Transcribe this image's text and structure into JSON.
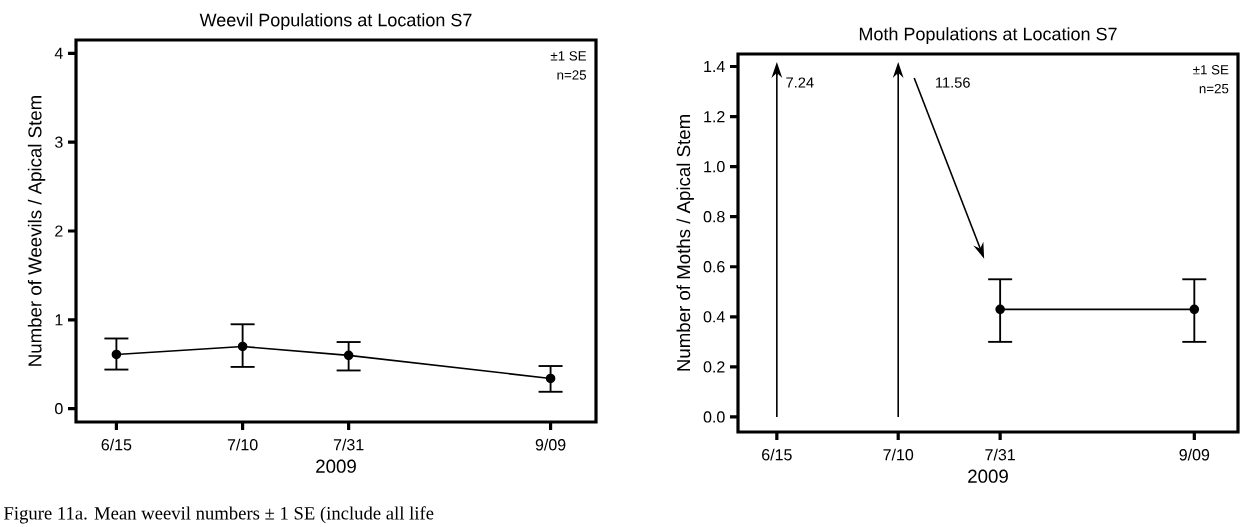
{
  "chart_data": [
    {
      "type": "line",
      "title": "Weevil Populations at Location S7",
      "xlabel": "2009",
      "ylabel": "Number of Weevils / Apical Stem",
      "x": [
        "2009-06-15",
        "2009-07-10",
        "2009-07-31",
        "2009-09-09"
      ],
      "series": [
        {
          "color": "#000000",
          "values": [
            0.61,
            0.7,
            0.6,
            0.34
          ],
          "errors": [
            [
              0.44,
              0.79
            ],
            [
              0.47,
              0.95
            ],
            [
              0.43,
              0.75
            ],
            [
              0.19,
              0.48
            ]
          ]
        }
      ],
      "xlim": [
        "2009-06-07",
        "2009-09-18"
      ],
      "xticks": [
        {
          "value": "2009-06-15",
          "label": "6/15"
        },
        {
          "value": "2009-07-10",
          "label": "7/10"
        },
        {
          "value": "2009-07-31",
          "label": "7/31"
        },
        {
          "value": "2009-09-09",
          "label": "9/09"
        }
      ],
      "ylim": [
        -0.15,
        4.15
      ],
      "yticks": [
        0,
        1,
        2,
        3,
        4
      ],
      "marker": "circle",
      "line_style": "solid",
      "annotations": [
        "±1 SE",
        "n=25",
        "Figure 11a. Mean weevil numbers ± 1 SE (include all life"
      ]
    },
    {
      "type": "line",
      "title": "Moth Populations at Location S7",
      "xlabel": "2009",
      "ylabel": "Number of Moths / Apical Stem",
      "series": [
        {
          "color": "#000000",
          "x": [
            "2009-07-31",
            "2009-09-09"
          ],
          "values": [
            0.43,
            0.43
          ],
          "errors": [
            [
              0.3,
              0.55
            ],
            [
              0.3,
              0.55
            ]
          ]
        }
      ],
      "xlim": [
        "2009-06-07",
        "2009-09-18"
      ],
      "xticks": [
        {
          "value": "2009-06-15",
          "label": "6/15"
        },
        {
          "value": "2009-07-10",
          "label": "7/10"
        },
        {
          "value": "2009-07-31",
          "label": "7/31"
        },
        {
          "value": "2009-09-09",
          "label": "9/09"
        }
      ],
      "ylim": [
        -0.06,
        1.45
      ],
      "yticks": [
        {
          "value": 0,
          "label": "0.0"
        },
        {
          "value": 0.2,
          "label": "0.2"
        },
        {
          "value": 0.4,
          "label": "0.4"
        },
        {
          "value": 0.6,
          "label": "0.6"
        },
        {
          "value": 0.8,
          "label": "0.8"
        },
        {
          "value": 1.0,
          "label": "1.0"
        },
        {
          "value": 1.2,
          "label": "1.2"
        },
        {
          "value": 1.4,
          "label": "1.4"
        }
      ],
      "marker": "circle",
      "line_style": "solid",
      "ref_lines": [
        {
          "axis": "x",
          "value": "2009-06-15",
          "label": "7.24"
        },
        {
          "axis": "x",
          "value": "2009-07-10",
          "label": "11.56"
        }
      ],
      "annotations": [
        "±1 SE",
        "n=25"
      ]
    }
  ]
}
